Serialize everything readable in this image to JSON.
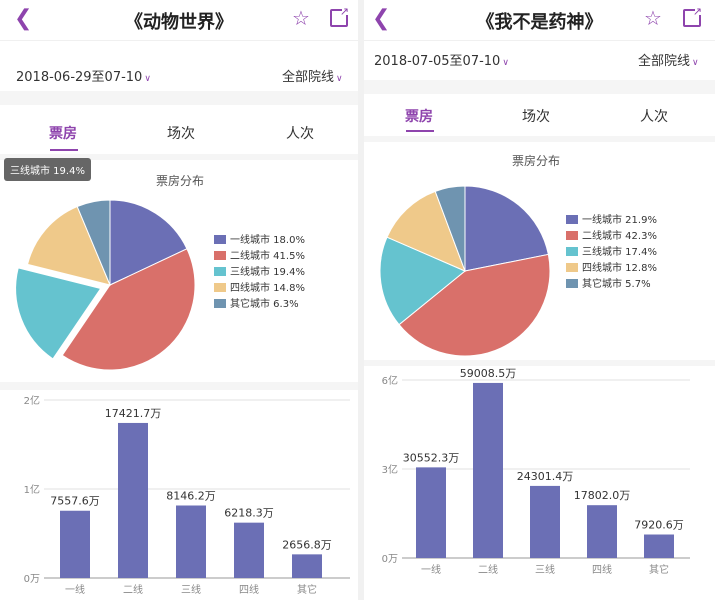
{
  "colors": {
    "accent": "#8e44ad",
    "bar": "#6b6fb5",
    "series": [
      "#6b6fb5",
      "#d9706a",
      "#65c3cf",
      "#efc98a",
      "#6f94b0"
    ]
  },
  "left": {
    "title": "《动物世界》",
    "date_range": "2018-06-29至07-10",
    "cinema_filter": "全部院线",
    "tabs": [
      {
        "label": "票房",
        "active": true
      },
      {
        "label": "场次",
        "active": false
      },
      {
        "label": "人次",
        "active": false
      }
    ],
    "tooltip": "三线城市 19.4%",
    "pie_title": "票房分布",
    "legend": [
      "一线城市 18.0%",
      "二线城市 41.5%",
      "三线城市 19.4%",
      "四线城市 14.8%",
      "其它城市 6.3%"
    ],
    "chart_data": [
      {
        "type": "pie",
        "title": "票房分布",
        "categories": [
          "一线城市",
          "二线城市",
          "三线城市",
          "四线城市",
          "其它城市"
        ],
        "values": [
          18.0,
          41.5,
          19.4,
          14.8,
          6.3
        ],
        "highlighted": "三线城市"
      },
      {
        "type": "bar",
        "categories": [
          "一线",
          "二线",
          "三线",
          "四线",
          "其它"
        ],
        "values": [
          7557.6,
          17421.7,
          8146.2,
          6218.3,
          2656.8
        ],
        "value_labels": [
          "7557.6万",
          "17421.7万",
          "8146.2万",
          "6218.3万",
          "2656.8万"
        ],
        "ylim": [
          0,
          20000
        ],
        "ytick_values": [
          0,
          10000,
          20000
        ],
        "ytick_labels": [
          "0万",
          "1亿",
          "2亿"
        ]
      }
    ]
  },
  "right": {
    "title": "《我不是药神》",
    "date_range": "2018-07-05至07-10",
    "cinema_filter": "全部院线",
    "tabs": [
      {
        "label": "票房",
        "active": true
      },
      {
        "label": "场次",
        "active": false
      },
      {
        "label": "人次",
        "active": false
      }
    ],
    "pie_title": "票房分布",
    "legend": [
      "一线城市 21.9%",
      "二线城市 42.3%",
      "三线城市 17.4%",
      "四线城市 12.8%",
      "其它城市 5.7%"
    ],
    "chart_data": [
      {
        "type": "pie",
        "title": "票房分布",
        "categories": [
          "一线城市",
          "二线城市",
          "三线城市",
          "四线城市",
          "其它城市"
        ],
        "values": [
          21.9,
          42.3,
          17.4,
          12.8,
          5.7
        ]
      },
      {
        "type": "bar",
        "categories": [
          "一线",
          "二线",
          "三线",
          "四线",
          "其它"
        ],
        "values": [
          30552.3,
          59008.5,
          24301.4,
          17802.0,
          7920.6
        ],
        "value_labels": [
          "30552.3万",
          "59008.5万",
          "24301.4万",
          "17802.0万",
          "7920.6万"
        ],
        "ylim": [
          0,
          60000
        ],
        "ytick_values": [
          0,
          30000,
          60000
        ],
        "ytick_labels": [
          "0万",
          "3亿",
          "6亿"
        ]
      }
    ]
  }
}
